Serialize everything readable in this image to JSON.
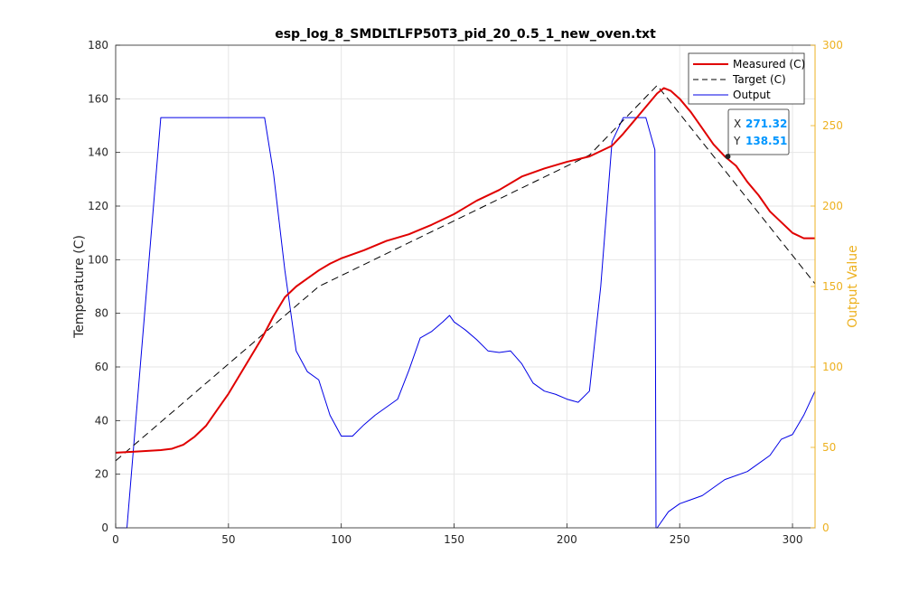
{
  "chart_data": {
    "type": "line",
    "title": "esp_log_8_SMDLTLFP50T3_pid_20_0.5_1_new_oven.txt",
    "xlim": [
      0,
      310
    ],
    "ylim_left": [
      0,
      180
    ],
    "ylim_right": [
      0,
      300
    ],
    "ylabel_left": "Temperature (C)",
    "ylabel_right": "Output Value",
    "xticks": [
      "0",
      "50",
      "100",
      "150",
      "200",
      "250",
      "300"
    ],
    "yticks_left": [
      "0",
      "20",
      "40",
      "60",
      "80",
      "100",
      "120",
      "140",
      "160",
      "180"
    ],
    "yticks_right": [
      "0",
      "50",
      "100",
      "150",
      "200",
      "250",
      "300"
    ],
    "grid": true,
    "legend_position": "top-right",
    "colors": {
      "measured": "#E00000",
      "target": "#000000",
      "output": "#0000E6",
      "right_axis": "#EDB120",
      "datatip_value": "#0096FF"
    },
    "series": [
      {
        "name": "Measured (C)",
        "axis": "left",
        "style": "solid",
        "x": [
          0,
          10,
          20,
          25,
          30,
          35,
          40,
          45,
          50,
          55,
          60,
          65,
          70,
          75,
          80,
          85,
          90,
          95,
          100,
          110,
          120,
          130,
          140,
          150,
          160,
          170,
          180,
          190,
          200,
          210,
          220,
          225,
          230,
          235,
          240,
          243,
          246,
          250,
          255,
          260,
          265,
          270,
          275,
          280,
          285,
          290,
          295,
          300,
          305,
          310
        ],
        "y": [
          28,
          28.5,
          29,
          29.5,
          31,
          34,
          38,
          44,
          50,
          57,
          64,
          71,
          79,
          86,
          90,
          93,
          96,
          98.5,
          100.5,
          103.5,
          107,
          109.5,
          113,
          117,
          122,
          126,
          131,
          134,
          136.5,
          138.5,
          142.5,
          147,
          152,
          157,
          162,
          164,
          163,
          160,
          155,
          149,
          143,
          138.5,
          135,
          129,
          124,
          118,
          114,
          110,
          108,
          108
        ]
      },
      {
        "name": "Target (C)",
        "axis": "left",
        "style": "dashed",
        "x": [
          0,
          90,
          210,
          240,
          310
        ],
        "y": [
          25,
          90,
          139,
          165,
          91
        ]
      },
      {
        "name": "Output",
        "axis": "right",
        "style": "solid",
        "x": [
          0,
          5,
          20,
          66,
          70,
          75,
          80,
          85,
          90,
          95,
          100,
          105,
          110,
          115,
          120,
          125,
          130,
          135,
          140,
          145,
          148,
          150,
          155,
          160,
          165,
          170,
          175,
          180,
          185,
          190,
          195,
          200,
          205,
          210,
          215,
          220,
          225,
          230,
          235,
          238,
          239,
          239.5,
          240,
          245,
          250,
          260,
          270,
          280,
          290,
          295,
          300,
          305,
          310
        ],
        "y": [
          0,
          0,
          255,
          255,
          220,
          160,
          110,
          97,
          92,
          70,
          57,
          57,
          64,
          70,
          75,
          80,
          98,
          118,
          122,
          128,
          132,
          128,
          123,
          117,
          110,
          109,
          110,
          102,
          90,
          85,
          83,
          80,
          78,
          85,
          150,
          240,
          255,
          255,
          255,
          240,
          235,
          0,
          0,
          10,
          15,
          20,
          30,
          35,
          45,
          55,
          58,
          70,
          85
        ]
      }
    ],
    "datatip": {
      "x_label": "X",
      "x_value": "271.32",
      "y_label": "Y",
      "y_value": "138.51",
      "x": 271.32,
      "y": 138.51
    }
  }
}
